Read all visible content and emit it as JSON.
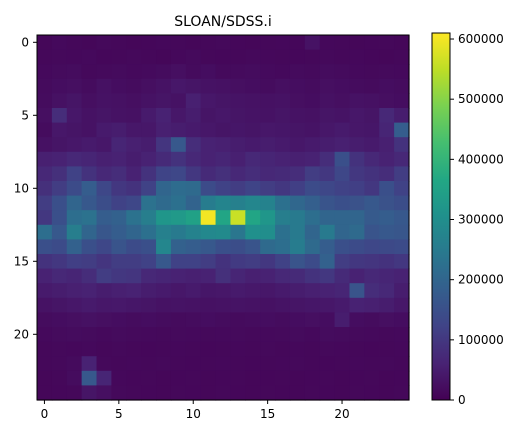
{
  "title": "SLOAN/SDSS.i",
  "chart_data": {
    "type": "heatmap",
    "title": "SLOAN/SDSS.i",
    "rows": 25,
    "cols": 25,
    "x_ticks": [
      0,
      5,
      10,
      15,
      20
    ],
    "y_ticks": [
      0,
      5,
      10,
      15,
      20
    ],
    "vmin": 0,
    "vmax": 610000,
    "colorbar_ticks": [
      0,
      100000,
      200000,
      300000,
      400000,
      500000,
      600000
    ],
    "colormap": "viridis",
    "values": [
      [
        10000,
        15000,
        12000,
        10000,
        14000,
        12000,
        10000,
        11000,
        13000,
        12000,
        10000,
        12000,
        14000,
        11000,
        10000,
        12000,
        13000,
        11000,
        30000,
        13000,
        12000,
        10000,
        11000,
        12000,
        10000
      ],
      [
        12000,
        14000,
        13000,
        15000,
        11000,
        12000,
        14000,
        12000,
        10000,
        13000,
        16000,
        12000,
        11000,
        12000,
        14000,
        13000,
        12000,
        11000,
        12000,
        14000,
        12000,
        13000,
        11000,
        10000,
        12000
      ],
      [
        15000,
        18000,
        20000,
        14000,
        16000,
        18000,
        15000,
        17000,
        20000,
        25000,
        18000,
        22000,
        16000,
        18000,
        20000,
        17000,
        15000,
        18000,
        16000,
        20000,
        18000,
        15000,
        14000,
        16000,
        15000
      ],
      [
        18000,
        22000,
        25000,
        20000,
        28000,
        22000,
        20000,
        25000,
        30000,
        40000,
        35000,
        30000,
        28000,
        25000,
        22000,
        20000,
        25000,
        22000,
        20000,
        25000,
        22000,
        20000,
        18000,
        22000,
        20000
      ],
      [
        20000,
        28000,
        35000,
        25000,
        30000,
        28000,
        25000,
        30000,
        35000,
        30000,
        55000,
        40000,
        35000,
        32000,
        30000,
        28000,
        30000,
        25000,
        22000,
        28000,
        25000,
        30000,
        28000,
        25000,
        22000
      ],
      [
        25000,
        80000,
        40000,
        30000,
        35000,
        30000,
        28000,
        45000,
        60000,
        40000,
        50000,
        35000,
        40000,
        35000,
        32000,
        30000,
        35000,
        30000,
        28000,
        35000,
        32000,
        40000,
        35000,
        70000,
        50000
      ],
      [
        20000,
        40000,
        35000,
        30000,
        45000,
        50000,
        40000,
        40000,
        55000,
        50000,
        45000,
        40000,
        35000,
        38000,
        35000,
        40000,
        38000,
        35000,
        32000,
        40000,
        45000,
        40000,
        38000,
        65000,
        180000
      ],
      [
        28000,
        35000,
        40000,
        45000,
        40000,
        65000,
        55000,
        50000,
        95000,
        170000,
        80000,
        60000,
        55000,
        50000,
        45000,
        50000,
        45000,
        40000,
        45000,
        50000,
        55000,
        50000,
        45000,
        55000,
        90000
      ],
      [
        55000,
        60000,
        70000,
        65000,
        55000,
        60000,
        50000,
        60000,
        75000,
        90000,
        70000,
        60000,
        65000,
        55000,
        70000,
        65000,
        60000,
        55000,
        60000,
        80000,
        150000,
        90000,
        70000,
        60000,
        70000
      ],
      [
        70000,
        85000,
        120000,
        90000,
        70000,
        80000,
        60000,
        90000,
        125000,
        130000,
        100000,
        75000,
        85000,
        70000,
        80000,
        70000,
        75000,
        80000,
        110000,
        100000,
        130000,
        100000,
        90000,
        80000,
        110000
      ],
      [
        85000,
        110000,
        140000,
        180000,
        130000,
        100000,
        90000,
        120000,
        200000,
        215000,
        210000,
        140000,
        120000,
        110000,
        125000,
        110000,
        100000,
        115000,
        140000,
        130000,
        120000,
        115000,
        100000,
        150000,
        120000
      ],
      [
        110000,
        150000,
        200000,
        170000,
        145000,
        120000,
        130000,
        230000,
        210000,
        225000,
        195000,
        255000,
        275000,
        265000,
        280000,
        270000,
        225000,
        205000,
        185000,
        160000,
        150000,
        155000,
        170000,
        155000,
        145000
      ],
      [
        100000,
        150000,
        220000,
        230000,
        180000,
        190000,
        230000,
        260000,
        320000,
        330000,
        350000,
        600000,
        360000,
        560000,
        360000,
        320000,
        260000,
        250000,
        220000,
        200000,
        200000,
        200000,
        175000,
        180000,
        170000
      ],
      [
        220000,
        170000,
        260000,
        200000,
        165000,
        180000,
        200000,
        225000,
        265000,
        250000,
        270000,
        285000,
        290000,
        240000,
        305000,
        300000,
        225000,
        250000,
        200000,
        250000,
        200000,
        210000,
        160000,
        170000,
        165000
      ],
      [
        150000,
        140000,
        190000,
        150000,
        130000,
        160000,
        140000,
        150000,
        280000,
        190000,
        180000,
        170000,
        150000,
        145000,
        160000,
        210000,
        220000,
        255000,
        210000,
        180000,
        150000,
        140000,
        130000,
        135000,
        140000
      ],
      [
        90000,
        100000,
        115000,
        110000,
        95000,
        110000,
        110000,
        120000,
        170000,
        120000,
        120000,
        110000,
        90000,
        105000,
        110000,
        100000,
        120000,
        160000,
        140000,
        190000,
        110000,
        100000,
        95000,
        90000,
        100000
      ],
      [
        60000,
        70000,
        65000,
        80000,
        110000,
        100000,
        95000,
        70000,
        65000,
        60000,
        55000,
        60000,
        85000,
        65000,
        55000,
        60000,
        70000,
        75000,
        90000,
        100000,
        75000,
        60000,
        70000,
        65000,
        60000
      ],
      [
        45000,
        50000,
        55000,
        60000,
        50000,
        55000,
        60000,
        50000,
        45000,
        40000,
        45000,
        38000,
        40000,
        45000,
        42000,
        40000,
        45000,
        50000,
        55000,
        60000,
        65000,
        160000,
        80000,
        70000,
        50000
      ],
      [
        30000,
        35000,
        40000,
        45000,
        40000,
        42000,
        38000,
        35000,
        30000,
        32000,
        30000,
        28000,
        30000,
        32000,
        30000,
        28000,
        32000,
        35000,
        38000,
        40000,
        45000,
        60000,
        55000,
        50000,
        40000
      ],
      [
        20000,
        22000,
        25000,
        28000,
        25000,
        22000,
        20000,
        22000,
        20000,
        18000,
        20000,
        22000,
        20000,
        18000,
        20000,
        22000,
        20000,
        22000,
        25000,
        22000,
        50000,
        22000,
        20000,
        25000,
        22000
      ],
      [
        15000,
        18000,
        20000,
        18000,
        15000,
        18000,
        16000,
        15000,
        14000,
        16000,
        15000,
        14000,
        15000,
        16000,
        14000,
        15000,
        16000,
        18000,
        15000,
        20000,
        18000,
        16000,
        15000,
        14000,
        15000
      ],
      [
        12000,
        14000,
        13000,
        15000,
        12000,
        14000,
        12000,
        11000,
        12000,
        13000,
        12000,
        11000,
        12000,
        13000,
        12000,
        14000,
        12000,
        13000,
        12000,
        14000,
        13000,
        12000,
        11000,
        12000,
        13000
      ],
      [
        12000,
        14000,
        18000,
        60000,
        14000,
        12000,
        13000,
        12000,
        14000,
        12000,
        11000,
        12000,
        13000,
        12000,
        11000,
        12000,
        13000,
        14000,
        12000,
        11000,
        12000,
        13000,
        12000,
        14000,
        12000
      ],
      [
        10000,
        12000,
        20000,
        170000,
        65000,
        13000,
        11000,
        12000,
        10000,
        11000,
        12000,
        10000,
        11000,
        12000,
        10000,
        11000,
        12000,
        10000,
        11000,
        12000,
        10000,
        11000,
        12000,
        10000,
        11000
      ],
      [
        10000,
        11000,
        12000,
        35000,
        25000,
        14000,
        12000,
        11000,
        10000,
        12000,
        11000,
        10000,
        12000,
        11000,
        10000,
        12000,
        11000,
        10000,
        12000,
        11000,
        10000,
        12000,
        11000,
        10000,
        12000
      ]
    ]
  }
}
